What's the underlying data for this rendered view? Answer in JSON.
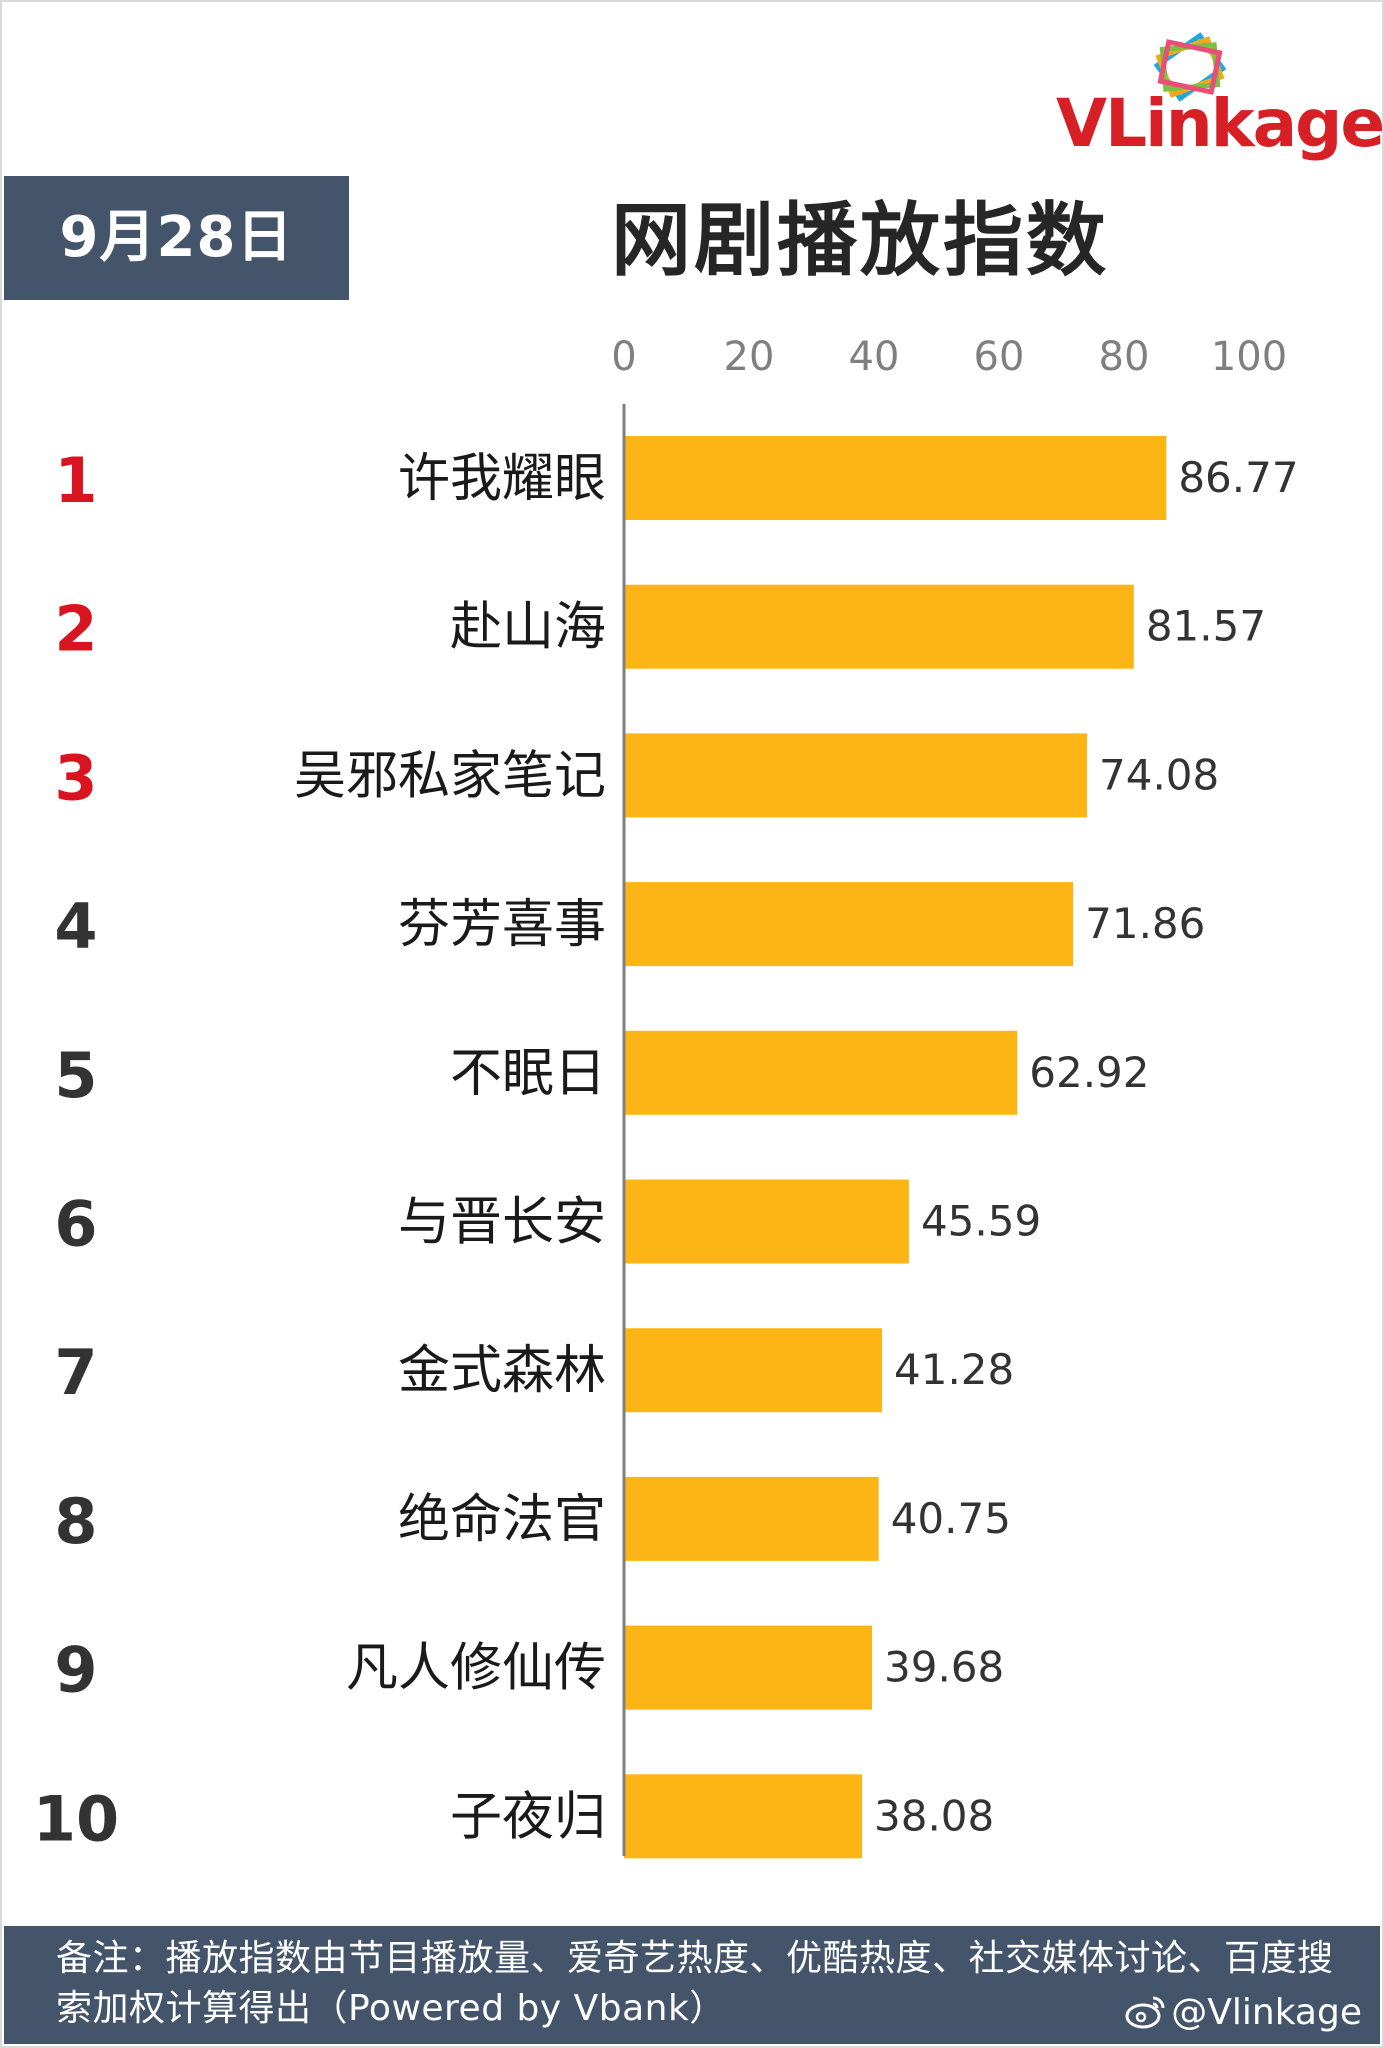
{
  "header": {
    "date": "9月28日",
    "title": "网剧播放指数",
    "logo_text": "VLinkage"
  },
  "colors": {
    "bar": "#fdb515",
    "date_box": "#44546a",
    "footer": "#44546a",
    "top_rank": "#d7141f",
    "rank": "#333333",
    "axis": "#7f7f7f",
    "logo_red": "#d62026"
  },
  "chart_data": {
    "type": "bar",
    "orientation": "horizontal",
    "title": "网剧播放指数",
    "xlim": [
      0,
      100
    ],
    "xticks": [
      0,
      20,
      40,
      60,
      80,
      100
    ],
    "grid": false,
    "ranks": [
      "1",
      "2",
      "3",
      "4",
      "5",
      "6",
      "7",
      "8",
      "9",
      "10"
    ],
    "categories": [
      "许我耀眼",
      "赴山海",
      "吴邪私家笔记",
      "芬芳喜事",
      "不眠日",
      "与晋长安",
      "金式森林",
      "绝命法官",
      "凡人修仙传",
      "子夜归"
    ],
    "values": [
      86.77,
      81.57,
      74.08,
      71.86,
      62.92,
      45.59,
      41.28,
      40.75,
      39.68,
      38.08
    ],
    "value_labels": [
      "86.77",
      "81.57",
      "74.08",
      "71.86",
      "62.92",
      "45.59",
      "41.28",
      "40.75",
      "39.68",
      "38.08"
    ]
  },
  "footer": {
    "note": "备注：播放指数由节目播放量、爱奇艺热度、优酷热度、社交媒体讨论、百度搜索加权计算得出（Powered by Vbank）",
    "watermark": "@Vlinkage",
    "watermark_icon": "weibo-icon"
  }
}
